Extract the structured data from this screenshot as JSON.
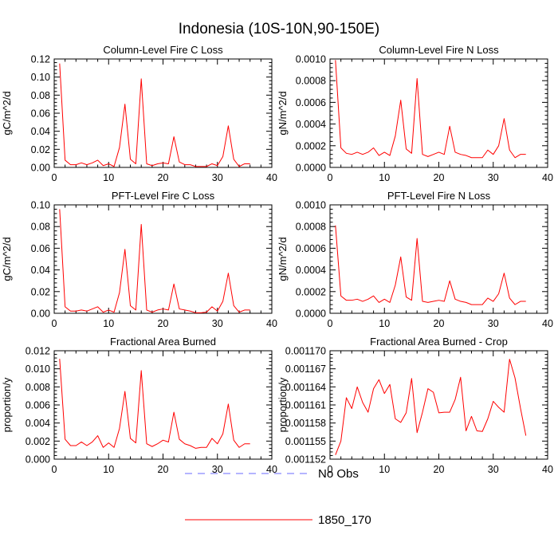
{
  "figure": {
    "title": "Indonesia (10S-10N,90-150E)",
    "line_color": "#ff0000",
    "obs_color": "#6a6aff"
  },
  "legend": {
    "items": [
      {
        "label": "No Obs",
        "style": "dashed",
        "color": "#6a6aff"
      },
      {
        "label": "1850_170",
        "style": "solid",
        "color": "#ff0000"
      }
    ]
  },
  "chart_data": [
    {
      "type": "line",
      "title": "Column-Level Fire C Loss",
      "ylabel": "gC/m^2/d",
      "xlim": [
        0,
        40
      ],
      "ylim": [
        0,
        0.12
      ],
      "xticks": [
        0,
        10,
        20,
        30,
        40
      ],
      "yticks": [
        "0.00",
        "0.02",
        "0.04",
        "0.06",
        "0.08",
        "0.10",
        "0.12"
      ],
      "series": [
        {
          "x": [
            1,
            2,
            3,
            4,
            5,
            6,
            7,
            8,
            9,
            10,
            11,
            12,
            13,
            14,
            15,
            16,
            17,
            18,
            19,
            20,
            21,
            22,
            23,
            24,
            25,
            26,
            27,
            28,
            29,
            30,
            31,
            32,
            33,
            34,
            35,
            36
          ],
          "values": [
            0.115,
            0.008,
            0.003,
            0.003,
            0.005,
            0.003,
            0.005,
            0.008,
            0.002,
            0.004,
            0.001,
            0.022,
            0.07,
            0.009,
            0.004,
            0.098,
            0.004,
            0.002,
            0.004,
            0.005,
            0.004,
            0.034,
            0.006,
            0.003,
            0.003,
            0.001,
            0.001,
            0.001,
            0.004,
            0.002,
            0.012,
            0.046,
            0.009,
            0.001,
            0.004,
            0.004
          ]
        }
      ]
    },
    {
      "type": "line",
      "title": "Column-Level Fire N Loss",
      "ylabel": "gN/m^2/d",
      "xlim": [
        0,
        40
      ],
      "ylim": [
        0,
        0.001
      ],
      "xticks": [
        0,
        10,
        20,
        30,
        40
      ],
      "yticks": [
        "0.0000",
        "0.0002",
        "0.0004",
        "0.0006",
        "0.0008",
        "0.0010"
      ],
      "series": [
        {
          "x": [
            1,
            2,
            3,
            4,
            5,
            6,
            7,
            8,
            9,
            10,
            11,
            12,
            13,
            14,
            15,
            16,
            17,
            18,
            19,
            20,
            21,
            22,
            23,
            24,
            25,
            26,
            27,
            28,
            29,
            30,
            31,
            32,
            33,
            34,
            35,
            36
          ],
          "values": [
            0.00099,
            0.00018,
            0.00013,
            0.00012,
            0.00014,
            0.00012,
            0.00014,
            0.00018,
            0.00011,
            0.00014,
            0.00011,
            0.00029,
            0.00062,
            0.00017,
            0.00013,
            0.00082,
            0.00012,
            0.0001,
            0.00012,
            0.00014,
            0.00012,
            0.00038,
            0.00014,
            0.00012,
            0.00011,
            9e-05,
            9e-05,
            9e-05,
            0.00016,
            0.00012,
            0.0002,
            0.00045,
            0.00016,
            9e-05,
            0.00012,
            0.00012
          ]
        }
      ]
    },
    {
      "type": "line",
      "title": "PFT-Level Fire C Loss",
      "ylabel": "gC/m^2/d",
      "xlim": [
        0,
        40
      ],
      "ylim": [
        0,
        0.1
      ],
      "xticks": [
        0,
        10,
        20,
        30,
        40
      ],
      "yticks": [
        "0.00",
        "0.02",
        "0.04",
        "0.06",
        "0.08",
        "0.10"
      ],
      "series": [
        {
          "x": [
            1,
            2,
            3,
            4,
            5,
            6,
            7,
            8,
            9,
            10,
            11,
            12,
            13,
            14,
            15,
            16,
            17,
            18,
            19,
            20,
            21,
            22,
            23,
            24,
            25,
            26,
            27,
            28,
            29,
            30,
            31,
            32,
            33,
            34,
            35,
            36
          ],
          "values": [
            0.096,
            0.006,
            0.002,
            0.002,
            0.003,
            0.002,
            0.004,
            0.006,
            0.001,
            0.003,
            0.001,
            0.019,
            0.059,
            0.007,
            0.003,
            0.082,
            0.003,
            0.001,
            0.003,
            0.004,
            0.003,
            0.027,
            0.004,
            0.003,
            0.002,
            0.0005,
            0.0005,
            0.001,
            0.006,
            0.002,
            0.011,
            0.037,
            0.007,
            0.001,
            0.003,
            0.003
          ]
        }
      ]
    },
    {
      "type": "line",
      "title": "PFT-Level Fire N Loss",
      "ylabel": "gN/m^2/d",
      "xlim": [
        0,
        40
      ],
      "ylim": [
        0,
        0.001
      ],
      "xticks": [
        0,
        10,
        20,
        30,
        40
      ],
      "yticks": [
        "0.0000",
        "0.0002",
        "0.0004",
        "0.0006",
        "0.0008",
        "0.0010"
      ],
      "series": [
        {
          "x": [
            1,
            2,
            3,
            4,
            5,
            6,
            7,
            8,
            9,
            10,
            11,
            12,
            13,
            14,
            15,
            16,
            17,
            18,
            19,
            20,
            21,
            22,
            23,
            24,
            25,
            26,
            27,
            28,
            29,
            30,
            31,
            32,
            33,
            34,
            35,
            36
          ],
          "values": [
            0.00081,
            0.00016,
            0.00012,
            0.00012,
            0.00013,
            0.00011,
            0.00013,
            0.00016,
            0.0001,
            0.00013,
            0.0001,
            0.00026,
            0.00052,
            0.00015,
            0.00012,
            0.00069,
            0.00011,
            0.0001,
            0.00011,
            0.00012,
            0.00011,
            0.0003,
            0.00013,
            0.00011,
            0.0001,
            8e-05,
            8e-05,
            8e-05,
            0.00014,
            0.00011,
            0.00018,
            0.00037,
            0.00014,
            8e-05,
            0.00011,
            0.00011
          ]
        }
      ]
    },
    {
      "type": "line",
      "title": "Fractional Area Burned",
      "ylabel": "proportion/y",
      "xlim": [
        0,
        40
      ],
      "ylim": [
        0,
        0.012
      ],
      "xticks": [
        0,
        10,
        20,
        30,
        40
      ],
      "yticks": [
        "0.000",
        "0.002",
        "0.004",
        "0.006",
        "0.008",
        "0.010",
        "0.012"
      ],
      "series": [
        {
          "x": [
            1,
            2,
            3,
            4,
            5,
            6,
            7,
            8,
            9,
            10,
            11,
            12,
            13,
            14,
            15,
            16,
            17,
            18,
            19,
            20,
            21,
            22,
            23,
            24,
            25,
            26,
            27,
            28,
            29,
            30,
            31,
            32,
            33,
            34,
            35,
            36
          ],
          "values": [
            0.0111,
            0.0022,
            0.0015,
            0.0015,
            0.0019,
            0.0015,
            0.0019,
            0.0026,
            0.0013,
            0.0018,
            0.0013,
            0.0034,
            0.0075,
            0.0023,
            0.0018,
            0.0098,
            0.0017,
            0.0014,
            0.0017,
            0.0021,
            0.0019,
            0.0052,
            0.0022,
            0.0017,
            0.0015,
            0.0012,
            0.0013,
            0.0013,
            0.0023,
            0.0017,
            0.0028,
            0.0061,
            0.0021,
            0.0013,
            0.0017,
            0.0017
          ]
        }
      ]
    },
    {
      "type": "line",
      "title": "Fractional Area Burned - Crop",
      "ylabel": "proportion/y",
      "xlim": [
        0,
        40
      ],
      "ylim": [
        0.001152,
        0.00117
      ],
      "xticks": [
        0,
        10,
        20,
        30,
        40
      ],
      "yticks": [
        "0.001152",
        "0.001155",
        "0.001158",
        "0.001161",
        "0.001164",
        "0.001167",
        "0.001170"
      ],
      "series": [
        {
          "x": [
            1,
            2,
            3,
            4,
            5,
            6,
            7,
            8,
            9,
            10,
            11,
            12,
            13,
            14,
            15,
            16,
            17,
            18,
            19,
            20,
            21,
            22,
            23,
            24,
            25,
            26,
            27,
            28,
            29,
            30,
            31,
            32,
            33,
            34,
            35,
            36
          ],
          "values": [
            0.0011527,
            0.001155,
            0.0011622,
            0.0011604,
            0.001164,
            0.0011614,
            0.0011598,
            0.0011637,
            0.0011652,
            0.0011629,
            0.0011644,
            0.0011587,
            0.0011581,
            0.0011597,
            0.0011654,
            0.0011564,
            0.0011598,
            0.0011637,
            0.0011631,
            0.0011597,
            0.0011598,
            0.0011598,
            0.0011619,
            0.0011656,
            0.0011567,
            0.0011591,
            0.0011567,
            0.0011566,
            0.0011587,
            0.0011616,
            0.0011606,
            0.0011598,
            0.0011686,
            0.0011655,
            0.0011605,
            0.0011559
          ]
        }
      ]
    }
  ]
}
